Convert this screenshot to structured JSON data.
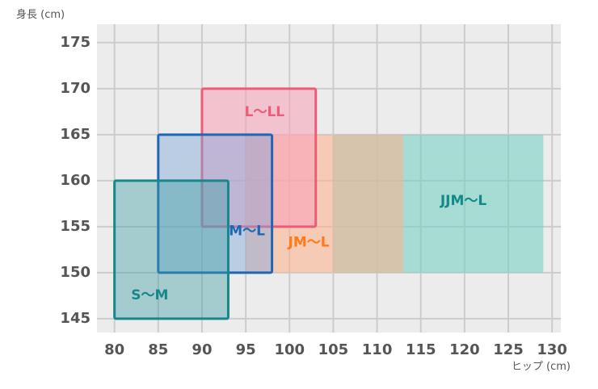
{
  "chart_data": {
    "type": "range-rectangles",
    "ylabel": "身長 (cm)",
    "xlabel": "ヒップ (cm)",
    "xlim": [
      78,
      131
    ],
    "ylim": [
      143.5,
      177
    ],
    "x_ticks": [
      80,
      85,
      90,
      95,
      100,
      105,
      110,
      115,
      120,
      125,
      130
    ],
    "y_ticks": [
      145,
      150,
      155,
      160,
      165,
      170,
      175
    ],
    "grid": true,
    "background": "#ececec",
    "gridline_color": "#cccccc",
    "series": [
      {
        "name": "JJM〜L",
        "hip": [
          105,
          129
        ],
        "height": [
          150,
          165
        ],
        "fill": "#6fd0c3",
        "fill_opacity": 0.55,
        "stroke": "none",
        "label_color": "#138a8a"
      },
      {
        "name": "JM〜L",
        "hip": [
          95,
          113
        ],
        "height": [
          150,
          165
        ],
        "fill": "#ffb08a",
        "fill_opacity": 0.55,
        "stroke": "none",
        "label_color": "#ff7a1a"
      },
      {
        "name": "L〜LL",
        "hip": [
          90,
          103
        ],
        "height": [
          155,
          170
        ],
        "fill": "#f7a1b8",
        "fill_opacity": 0.55,
        "stroke": "#ec5b78",
        "label_color": "#ec5b78"
      },
      {
        "name": "M〜L",
        "hip": [
          85,
          98
        ],
        "height": [
          150,
          165
        ],
        "fill": "#7fa9d9",
        "fill_opacity": 0.45,
        "stroke": "#1f66b5",
        "label_color": "#1f66b5"
      },
      {
        "name": "S〜M",
        "hip": [
          80,
          93
        ],
        "height": [
          145,
          160
        ],
        "fill": "#3a9ea2",
        "fill_opacity": 0.4,
        "stroke": "#17878b",
        "label_color": "#17878b"
      }
    ]
  }
}
